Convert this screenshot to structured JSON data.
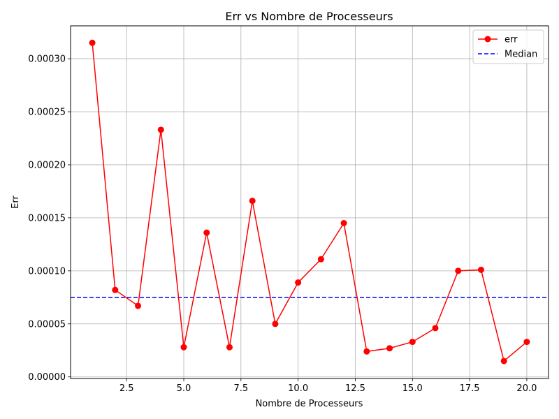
{
  "chart_data": {
    "type": "line",
    "title": "Err vs Nombre de Processeurs",
    "xlabel": "Nombre de Processeurs",
    "ylabel": "Err",
    "xlim": [
      0.05,
      20.95
    ],
    "ylim": [
      -1.5e-06,
      0.000331
    ],
    "x_ticks": [
      2.5,
      5.0,
      7.5,
      10.0,
      12.5,
      15.0,
      17.5,
      20.0
    ],
    "x_tick_labels": [
      "2.5",
      "5.0",
      "7.5",
      "10.0",
      "12.5",
      "15.0",
      "17.5",
      "20.0"
    ],
    "y_ticks": [
      0,
      5e-05,
      0.0001,
      0.00015,
      0.0002,
      0.00025,
      0.0003
    ],
    "y_tick_labels": [
      "0.00000",
      "0.00005",
      "0.00010",
      "0.00015",
      "0.00020",
      "0.00025",
      "0.00030"
    ],
    "grid": true,
    "legend_position": "top-right",
    "series": [
      {
        "name": "err",
        "color": "#ff0000",
        "style": "solid",
        "marker": "circle",
        "x": [
          1,
          2,
          3,
          4,
          5,
          6,
          7,
          8,
          9,
          10,
          11,
          12,
          13,
          14,
          15,
          16,
          17,
          18,
          19,
          20
        ],
        "values": [
          0.000315,
          8.2e-05,
          6.7e-05,
          0.000233,
          2.8e-05,
          0.000136,
          2.8e-05,
          0.000166,
          5e-05,
          8.9e-05,
          0.000111,
          0.000145,
          2.4e-05,
          2.7e-05,
          3.3e-05,
          4.6e-05,
          0.0001,
          0.000101,
          1.5e-05,
          3.3e-05
        ]
      }
    ],
    "reference_lines": [
      {
        "name": "Median",
        "orientation": "horizontal",
        "value": 7.5e-05,
        "color": "#0000ff",
        "style": "dashed"
      }
    ]
  }
}
